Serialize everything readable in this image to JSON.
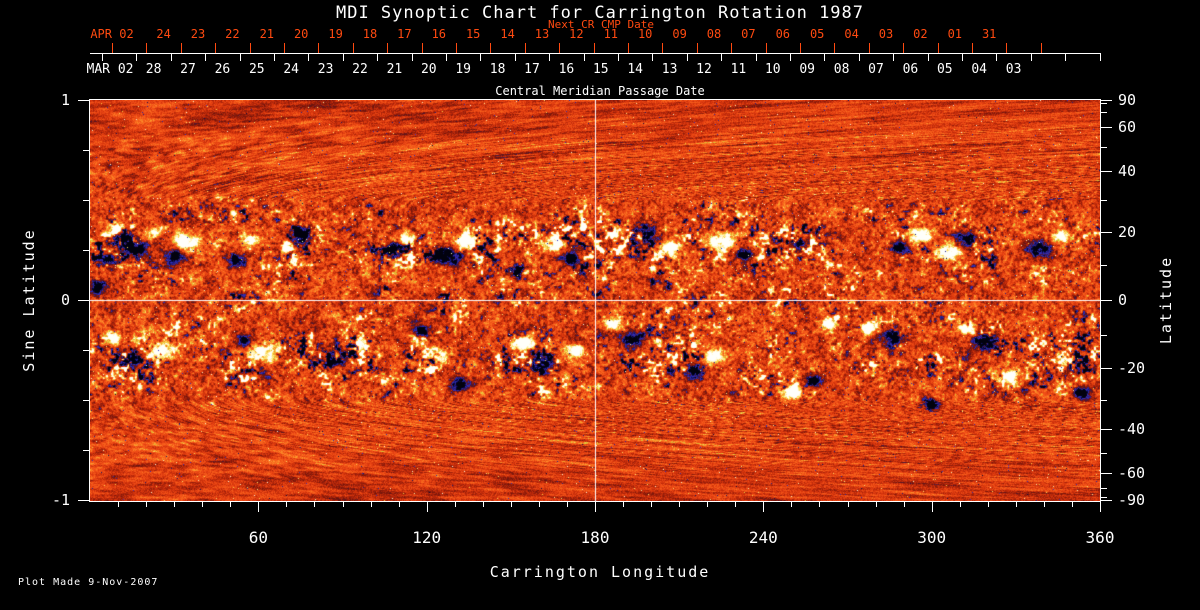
{
  "title": "MDI Synoptic Chart for Carrington Rotation 1987",
  "footer": {
    "plot_made": "Plot Made  9-Nov-2007"
  },
  "colors": {
    "background": "#000000",
    "foreground": "#ffffff",
    "accent_red": "#ff4a10"
  },
  "top_axis_next_cr": {
    "label": "Next CR CMP Date",
    "month_day": "APR 02",
    "days": [
      "24",
      "23",
      "22",
      "21",
      "20",
      "19",
      "18",
      "17",
      "16",
      "15",
      "14",
      "13",
      "12",
      "11",
      "10",
      "09",
      "08",
      "07",
      "06",
      "05",
      "04",
      "03",
      "02",
      "01",
      "31"
    ]
  },
  "top_axis_cmp": {
    "label": "Central Meridian Passage Date",
    "month_day": "MAR 02",
    "days": [
      "28",
      "27",
      "26",
      "25",
      "24",
      "23",
      "22",
      "21",
      "20",
      "19",
      "18",
      "17",
      "16",
      "15",
      "14",
      "13",
      "12",
      "11",
      "10",
      "09",
      "08",
      "07",
      "06",
      "05",
      "04",
      "03"
    ]
  },
  "left_axis": {
    "title": "Sine Latitude",
    "major_ticks": [
      "1",
      "0",
      "-1"
    ],
    "major_values": [
      1,
      0,
      -1
    ],
    "minor_values": [
      0.75,
      0.5,
      0.25,
      -0.25,
      -0.5,
      -0.75
    ]
  },
  "right_axis": {
    "title": "Latitude",
    "major_ticks": [
      "90",
      "60",
      "40",
      "20",
      "0",
      "-20",
      "-40",
      "-60",
      "-90"
    ],
    "major_values": [
      90,
      60,
      40,
      20,
      0,
      -20,
      -40,
      -60,
      -90
    ],
    "minor_values": [
      80,
      70,
      50,
      30,
      10,
      -10,
      -30,
      -50,
      -70,
      -80
    ]
  },
  "bottom_axis": {
    "title": "Carrington Longitude",
    "major_ticks": [
      "60",
      "120",
      "180",
      "240",
      "300",
      "360"
    ],
    "major_values": [
      60,
      120,
      180,
      240,
      300,
      360
    ],
    "minor_step_degrees": 10
  },
  "chart_data": {
    "type": "heatmap",
    "title": "MDI Synoptic Chart for Carrington Rotation 1987",
    "xlabel": "Carrington Longitude",
    "ylabel_left": "Sine Latitude",
    "ylabel_right": "Latitude",
    "x_range_degrees": [
      0,
      360
    ],
    "y_range_sine_latitude": [
      -1,
      1
    ],
    "description": "SOHO/MDI line-of-sight photospheric magnetic field synoptic map. Orange/red mottled quiet-Sun background; strong negative polarity regions appear blue/black, strong positive polarity regions appear yellow/white, concentrated in two activity bands near sine latitude +0.3 and -0.3.",
    "grid_lines": {
      "vertical_at_longitude": 180,
      "horizontal_at_sine_latitude": 0,
      "color": "#ffffff"
    },
    "colormap_stops": [
      [
        0.0,
        [
          2,
          2,
          14
        ]
      ],
      [
        0.06,
        [
          8,
          8,
          64
        ]
      ],
      [
        0.13,
        [
          34,
          34,
          150
        ]
      ],
      [
        0.19,
        [
          52,
          48,
          190
        ]
      ],
      [
        0.25,
        [
          60,
          22,
          72
        ]
      ],
      [
        0.32,
        [
          108,
          20,
          12
        ]
      ],
      [
        0.42,
        [
          168,
          34,
          10
        ]
      ],
      [
        0.5,
        [
          212,
          52,
          12
        ]
      ],
      [
        0.58,
        [
          238,
          74,
          22
        ]
      ],
      [
        0.66,
        [
          248,
          100,
          28
        ]
      ],
      [
        0.73,
        [
          252,
          140,
          42
        ]
      ],
      [
        0.765,
        [
          250,
          164,
          48
        ]
      ],
      [
        0.79,
        [
          206,
          198,
          54
        ]
      ],
      [
        0.815,
        [
          252,
          208,
          70
        ]
      ],
      [
        0.87,
        [
          255,
          230,
          120
        ]
      ],
      [
        0.93,
        [
          255,
          244,
          190
        ]
      ],
      [
        1.0,
        [
          255,
          255,
          250
        ]
      ]
    ],
    "activity_band_centers_sine_latitude": [
      0.3,
      -0.3
    ],
    "activity_band_width_sine_latitude": 0.17,
    "seed": 1987,
    "active_regions_lon_slat_polarity_radius": [
      [
        3,
        0.06,
        -1,
        10
      ],
      [
        6,
        0.2,
        -1,
        8
      ],
      [
        11,
        0.3,
        -1,
        10
      ],
      [
        9,
        0.36,
        1,
        7
      ],
      [
        16,
        0.26,
        -1,
        14
      ],
      [
        22,
        0.33,
        1,
        9
      ],
      [
        30,
        0.22,
        -1,
        11
      ],
      [
        34,
        0.29,
        1,
        12
      ],
      [
        52,
        0.2,
        -1,
        9
      ],
      [
        57,
        0.3,
        1,
        8
      ],
      [
        75,
        0.33,
        -1,
        10
      ],
      [
        70,
        0.26,
        1,
        6
      ],
      [
        108,
        0.25,
        -1,
        10
      ],
      [
        113,
        0.31,
        1,
        7
      ],
      [
        128,
        0.22,
        -1,
        13
      ],
      [
        134,
        0.3,
        1,
        10
      ],
      [
        152,
        0.14,
        -1,
        7
      ],
      [
        165,
        0.28,
        1,
        9
      ],
      [
        171,
        0.21,
        -1,
        8
      ],
      [
        198,
        0.32,
        -1,
        13
      ],
      [
        206,
        0.26,
        1,
        11
      ],
      [
        225,
        0.3,
        1,
        12
      ],
      [
        233,
        0.23,
        -1,
        8
      ],
      [
        253,
        0.28,
        -1,
        7
      ],
      [
        288,
        0.27,
        -1,
        9
      ],
      [
        296,
        0.32,
        1,
        11
      ],
      [
        306,
        0.24,
        1,
        10
      ],
      [
        313,
        0.3,
        -1,
        9
      ],
      [
        338,
        0.26,
        -1,
        11
      ],
      [
        346,
        0.32,
        1,
        8
      ],
      [
        8,
        -0.18,
        1,
        8
      ],
      [
        14,
        -0.3,
        -1,
        9
      ],
      [
        26,
        -0.25,
        1,
        12
      ],
      [
        55,
        -0.2,
        -1,
        8
      ],
      [
        61,
        -0.26,
        1,
        13
      ],
      [
        88,
        -0.3,
        -1,
        9
      ],
      [
        95,
        -0.22,
        1,
        8
      ],
      [
        118,
        -0.15,
        -1,
        9
      ],
      [
        124,
        -0.27,
        1,
        10
      ],
      [
        132,
        -0.42,
        -1,
        10
      ],
      [
        155,
        -0.22,
        1,
        9
      ],
      [
        161,
        -0.31,
        -1,
        11
      ],
      [
        173,
        -0.25,
        1,
        8
      ],
      [
        186,
        -0.12,
        1,
        8
      ],
      [
        193,
        -0.19,
        -1,
        12
      ],
      [
        215,
        -0.36,
        -1,
        9
      ],
      [
        222,
        -0.28,
        1,
        10
      ],
      [
        250,
        -0.46,
        1,
        9
      ],
      [
        258,
        -0.4,
        -1,
        8
      ],
      [
        263,
        -0.12,
        1,
        7
      ],
      [
        278,
        -0.14,
        1,
        8
      ],
      [
        286,
        -0.19,
        -1,
        12
      ],
      [
        300,
        -0.52,
        -1,
        7
      ],
      [
        312,
        -0.14,
        1,
        9
      ],
      [
        319,
        -0.21,
        -1,
        13
      ],
      [
        328,
        -0.38,
        1,
        9
      ],
      [
        348,
        -0.3,
        1,
        7
      ],
      [
        353,
        -0.46,
        -1,
        8
      ]
    ]
  }
}
